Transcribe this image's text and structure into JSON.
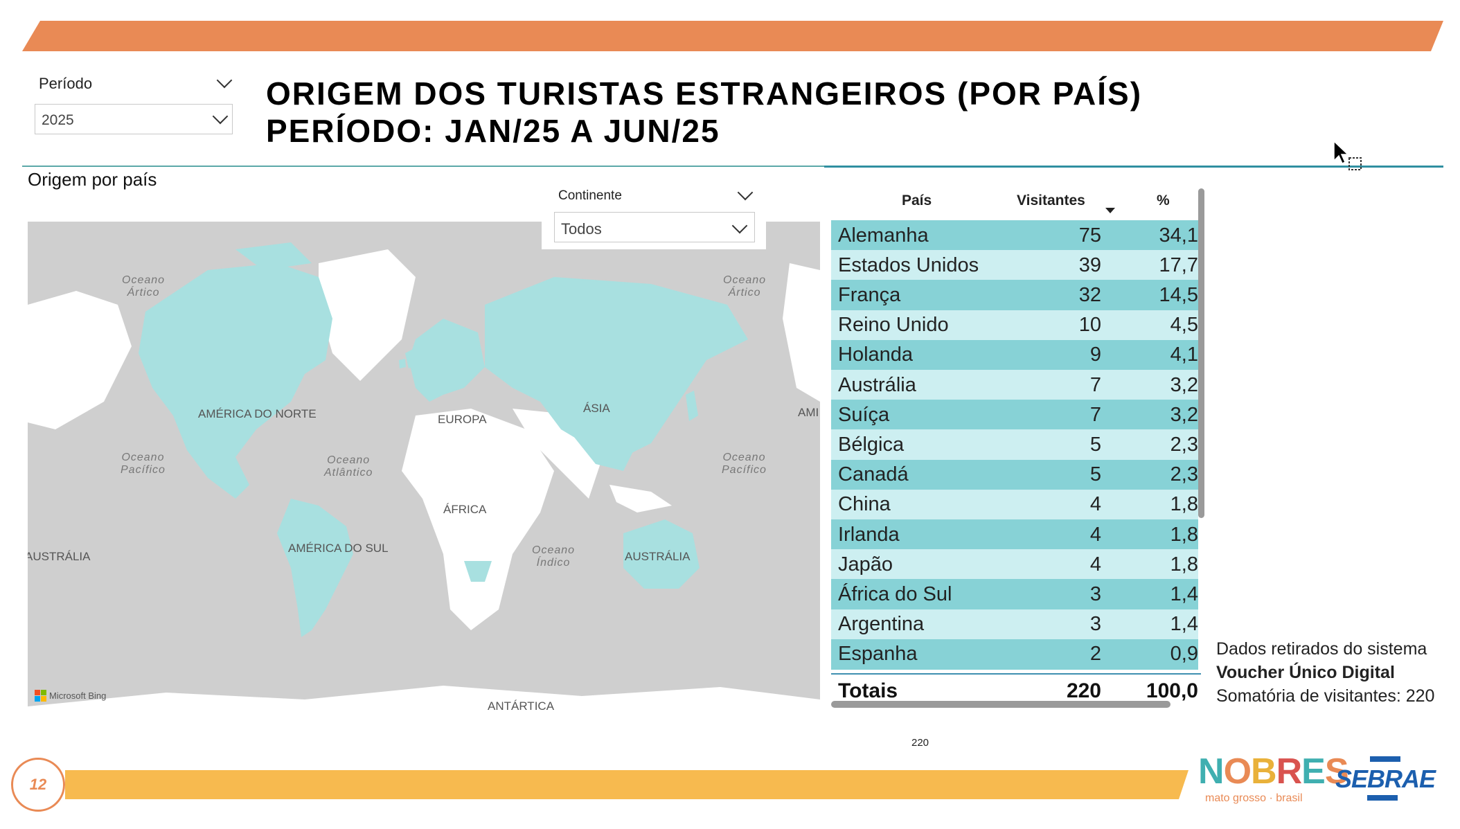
{
  "header": {
    "title_line1": "ORIGEM DOS TURISTAS ESTRANGEIROS (POR PAÍS)",
    "title_line2": "PERÍODO: JAN/25 A JUN/25"
  },
  "period_slicer": {
    "label": "Período",
    "value": "2025"
  },
  "map_visual": {
    "title": "Origem por país",
    "continent_slicer": {
      "label": "Continente",
      "value": "Todos"
    },
    "continent_labels": [
      "AMÉRICA DO NORTE",
      "EUROPA",
      "ÁSIA",
      "ÁFRICA",
      "AMÉRICA DO SUL",
      "AUSTRÁLIA",
      "AUSTRÁLIA",
      "ANTÁRTICA",
      "AMI"
    ],
    "ocean_labels": [
      {
        "l1": "Oceano",
        "l2": "Ártico"
      },
      {
        "l1": "Oceano",
        "l2": "Ártico"
      },
      {
        "l1": "Oceano",
        "l2": "Pacífico"
      },
      {
        "l1": "Oceano",
        "l2": "Atlântico"
      },
      {
        "l1": "Oceano",
        "l2": "Pacífico"
      },
      {
        "l1": "Oceano",
        "l2": "Índico"
      }
    ],
    "attribution": "Microsoft Bing",
    "colors": {
      "highlight": "#A8E0E0",
      "land": "#FFFFFF",
      "water": "#CFCFCF"
    }
  },
  "table": {
    "headers": {
      "country": "País",
      "visitors": "Visitantes",
      "percent": "%"
    },
    "sort_icon": "sort-descending-icon",
    "rows": [
      {
        "country": "Alemanha",
        "visitors": "75",
        "percent": "34,1"
      },
      {
        "country": "Estados Unidos",
        "visitors": "39",
        "percent": "17,7"
      },
      {
        "country": "França",
        "visitors": "32",
        "percent": "14,5"
      },
      {
        "country": "Reino Unido",
        "visitors": "10",
        "percent": "4,5"
      },
      {
        "country": "Holanda",
        "visitors": "9",
        "percent": "4,1"
      },
      {
        "country": "Austrália",
        "visitors": "7",
        "percent": "3,2"
      },
      {
        "country": "Suíça",
        "visitors": "7",
        "percent": "3,2"
      },
      {
        "country": "Bélgica",
        "visitors": "5",
        "percent": "2,3"
      },
      {
        "country": "Canadá",
        "visitors": "5",
        "percent": "2,3"
      },
      {
        "country": "China",
        "visitors": "4",
        "percent": "1,8"
      },
      {
        "country": "Irlanda",
        "visitors": "4",
        "percent": "1,8"
      },
      {
        "country": "Japão",
        "visitors": "4",
        "percent": "1,8"
      },
      {
        "country": "África do Sul",
        "visitors": "3",
        "percent": "1,4"
      },
      {
        "country": "Argentina",
        "visitors": "3",
        "percent": "1,4"
      },
      {
        "country": "Espanha",
        "visitors": "2",
        "percent": "0,9"
      }
    ],
    "totals": {
      "label": "Totais",
      "visitors": "220",
      "percent": "100,0"
    },
    "colors": {
      "row_dark": "#87D2D6",
      "row_light": "#CDEFF1"
    }
  },
  "info": {
    "line1": "Dados retirados do sistema",
    "line2": "Voucher Único Digital",
    "line3": "Somatória de visitantes: 220"
  },
  "footer": {
    "page_number": "12",
    "card_value": "220",
    "nobres_logo_text": "NOBRES",
    "nobres_logo_sub": "mato grosso · brasil",
    "sebrae_logo_text": "SEBRAE"
  },
  "colors": {
    "orange": "#E98A55",
    "yellow": "#F7BA4F",
    "teal_rule": "#2F8FA0"
  }
}
